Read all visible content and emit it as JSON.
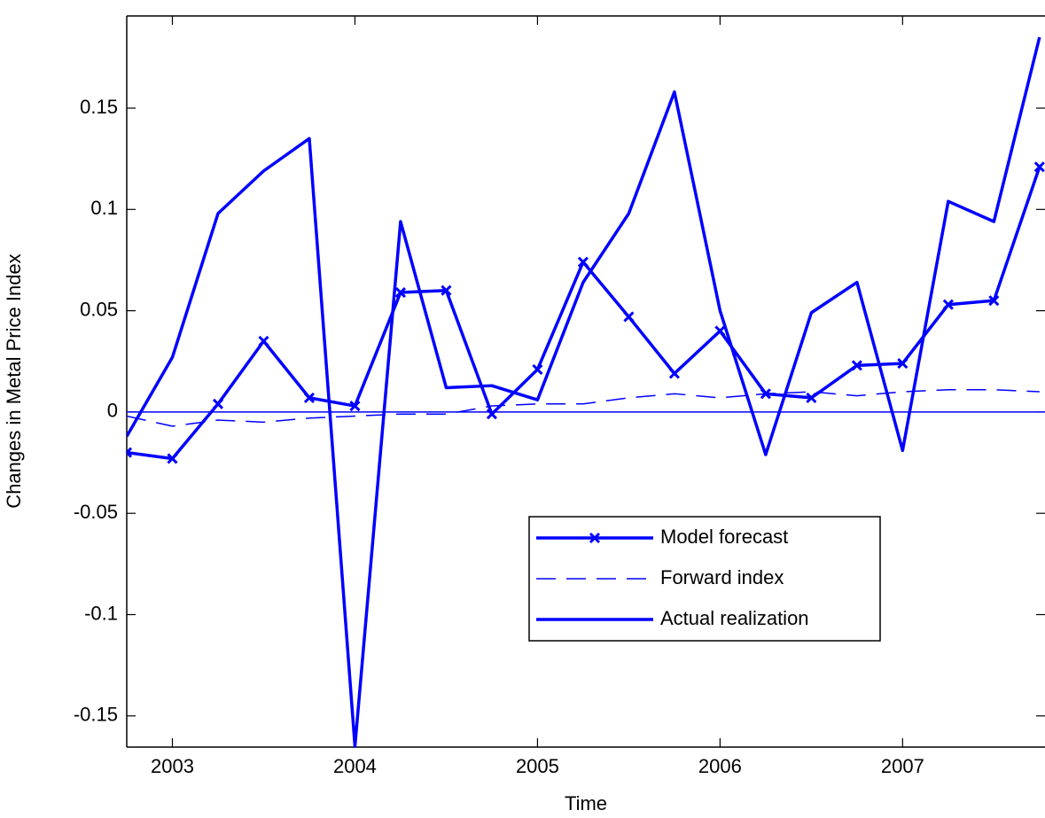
{
  "chart_data": {
    "type": "line",
    "x_label": "Time",
    "y_label": "Changes in Metal Price Index",
    "x": [
      2002.75,
      2003.0,
      2003.25,
      2003.5,
      2003.75,
      2004.0,
      2004.25,
      2004.5,
      2004.75,
      2005.0,
      2005.25,
      2005.5,
      2005.75,
      2006.0,
      2006.25,
      2006.5,
      2006.75,
      2007.0,
      2007.25,
      2007.5,
      2007.75
    ],
    "series": [
      {
        "name": "Model forecast",
        "color": "#0000ff",
        "linestyle": "solid",
        "linewidth": 3.5,
        "marker": "x",
        "values": [
          -0.02,
          -0.023,
          0.004,
          0.035,
          0.007,
          0.003,
          0.059,
          0.06,
          -0.001,
          0.021,
          0.074,
          0.047,
          0.019,
          0.04,
          0.009,
          0.007,
          0.023,
          0.024,
          0.053,
          0.055,
          0.121
        ]
      },
      {
        "name": "Forward index",
        "color": "#0000ff",
        "linestyle": "dashed",
        "linewidth": 1.5,
        "marker": "none",
        "values": [
          -0.002,
          -0.007,
          -0.004,
          -0.005,
          -0.003,
          -0.002,
          -0.001,
          -0.001,
          0.003,
          0.004,
          0.004,
          0.007,
          0.009,
          0.007,
          0.009,
          0.01,
          0.008,
          0.01,
          0.011,
          0.011,
          0.01
        ]
      },
      {
        "name": "Actual realization",
        "color": "#0000ff",
        "linestyle": "solid",
        "linewidth": 3.5,
        "marker": "none",
        "values": [
          -0.012,
          0.027,
          0.098,
          0.119,
          0.135,
          -0.165,
          0.094,
          0.012,
          0.013,
          0.006,
          0.064,
          0.098,
          0.158,
          0.05,
          -0.021,
          0.049,
          0.064,
          -0.019,
          0.104,
          0.094,
          0.185
        ]
      }
    ],
    "xlim": [
      2002.75,
      2007.78
    ],
    "xticks": [
      2003,
      2004,
      2005,
      2006,
      2007
    ],
    "ylim": [
      -0.1654,
      0.1955
    ],
    "yticks": [
      -0.15,
      -0.1,
      -0.05,
      0,
      0.05,
      0.1,
      0.15
    ],
    "zero_line": true,
    "grid": false,
    "legend": "lower right"
  }
}
